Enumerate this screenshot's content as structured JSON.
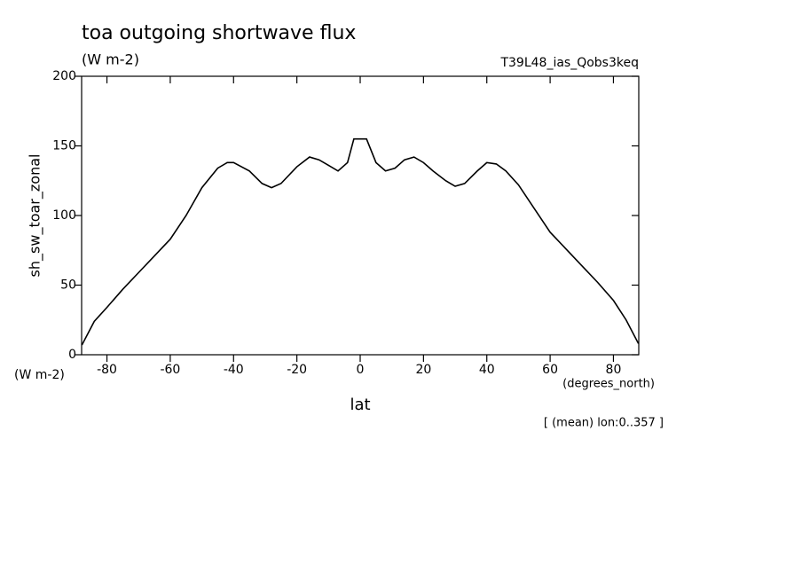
{
  "chart_data": {
    "type": "line",
    "title": "toa outgoing shortwave flux",
    "subtitle": "(W m-2)",
    "dataset": "T39L48_ias_Qobs3keq",
    "y_label": "sh_sw_toar_zonal",
    "y_units": "(W m-2)",
    "x_label": "lat",
    "x_units": "(degrees_north)",
    "annotation": "[ (mean) lon:0..357 ]",
    "x": [
      -87.9,
      -84,
      -80,
      -75,
      -70,
      -65,
      -60,
      -55,
      -50,
      -45,
      -42,
      -40,
      -35,
      -31,
      -28,
      -25,
      -20,
      -16,
      -13,
      -10,
      -7,
      -4,
      -2,
      2,
      5,
      8,
      11,
      14,
      17,
      20,
      23,
      27,
      30,
      33,
      37,
      40,
      43,
      46,
      50,
      55,
      60,
      65,
      70,
      75,
      80,
      84,
      87.9
    ],
    "series": [
      {
        "name": "sh_sw_toar_zonal",
        "color": "#000000",
        "values": [
          7,
          24,
          34,
          47,
          59,
          71,
          83,
          100,
          120,
          134,
          138,
          138,
          132,
          123,
          120,
          123,
          135,
          142,
          140,
          136,
          132,
          138,
          155,
          155,
          138,
          132,
          134,
          140,
          142,
          138,
          132,
          125,
          121,
          123,
          132,
          138,
          137,
          132,
          122,
          105,
          88,
          76,
          64,
          52,
          39,
          25,
          8
        ]
      }
    ],
    "xlim": [
      -88,
      88
    ],
    "ylim": [
      0,
      200
    ],
    "xticks": [
      -80,
      -60,
      -40,
      -20,
      0,
      20,
      40,
      60,
      80
    ],
    "yticks": [
      0,
      50,
      100,
      150,
      200
    ]
  }
}
